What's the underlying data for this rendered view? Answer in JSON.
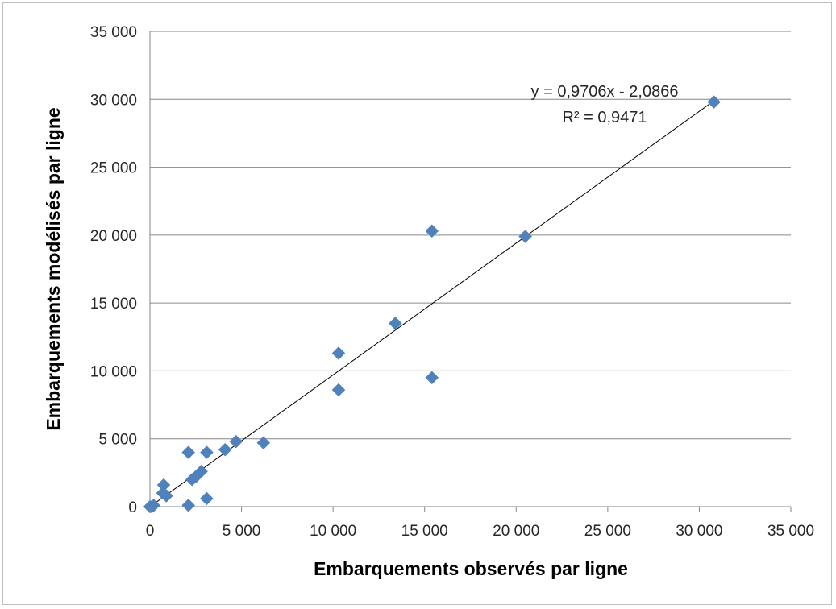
{
  "chart_data": {
    "type": "scatter",
    "title": "",
    "xlabel": "Embarquements observés par ligne",
    "ylabel": "Embarquements modélisés par ligne",
    "xlim": [
      0,
      35000
    ],
    "ylim": [
      0,
      35000
    ],
    "x_ticks": [
      0,
      5000,
      10000,
      15000,
      20000,
      25000,
      30000,
      35000
    ],
    "y_ticks": [
      0,
      5000,
      10000,
      15000,
      20000,
      25000,
      30000,
      35000
    ],
    "x_tick_labels": [
      "0",
      "5 000",
      "10 000",
      "15 000",
      "20 000",
      "25 000",
      "30 000",
      "35 000"
    ],
    "y_tick_labels": [
      "0",
      "5 000",
      "10 000",
      "15 000",
      "20 000",
      "25 000",
      "30 000",
      "35 000"
    ],
    "grid": "horizontal",
    "series": [
      {
        "marker": "diamond",
        "color": "#4f81bd",
        "points": [
          [
            0,
            0
          ],
          [
            100,
            0
          ],
          [
            200,
            100
          ],
          [
            700,
            1000
          ],
          [
            750,
            1600
          ],
          [
            900,
            800
          ],
          [
            2100,
            4000
          ],
          [
            2100,
            100
          ],
          [
            2300,
            2000
          ],
          [
            2500,
            2200
          ],
          [
            2800,
            2600
          ],
          [
            3100,
            4000
          ],
          [
            3100,
            600
          ],
          [
            4100,
            4200
          ],
          [
            4700,
            4800
          ],
          [
            6200,
            4700
          ],
          [
            10300,
            11300
          ],
          [
            10300,
            8600
          ],
          [
            13400,
            13500
          ],
          [
            15400,
            20300
          ],
          [
            15400,
            9500
          ],
          [
            20500,
            19900
          ],
          [
            30800,
            29800
          ]
        ]
      }
    ],
    "trendline": {
      "type": "linear",
      "slope": 0.9706,
      "intercept": -2.0866,
      "color": "#000000",
      "equation_label": "y = 0,9706x - 2,0866",
      "r2_label": "R² = 0,9471"
    }
  }
}
